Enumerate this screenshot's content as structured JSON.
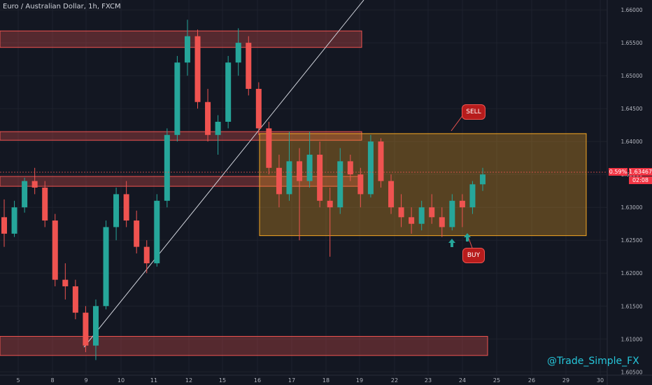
{
  "header": {
    "title": "Euro / Australian Dollar, 1h, FXCM"
  },
  "watermark": "@Trade_Simple_FX",
  "price_tag": {
    "percent": "0.59%",
    "price": "1.63467",
    "countdown": "02:08"
  },
  "annotations": {
    "sell": "SELL",
    "buy": "BUY"
  },
  "colors": {
    "background": "#131722",
    "up": "#26a69a",
    "down": "#ef5350",
    "zone_red": "#ef5350",
    "zone_orange": "#f5a623",
    "text": "#b2b5be"
  },
  "chart_data": {
    "type": "candlestick",
    "ylim": [
      1.6045,
      1.6615
    ],
    "y_ticks": [
      "1.66000",
      "1.65500",
      "1.65000",
      "1.64500",
      "1.64000",
      "1.63500",
      "1.63000",
      "1.62500",
      "1.62000",
      "1.61500",
      "1.61000",
      "1.60500"
    ],
    "x_ticks": [
      "5",
      "8",
      "9",
      "10",
      "11",
      "12",
      "15",
      "16",
      "17",
      "18",
      "19",
      "22",
      "23",
      "24",
      "25",
      "26",
      "29",
      "30"
    ],
    "series": [
      {
        "values": [
          [
            1.6285,
            1.6312,
            1.624,
            1.626
          ],
          [
            1.626,
            1.631,
            1.6255,
            1.63
          ],
          [
            1.63,
            1.6345,
            1.6292,
            1.634
          ],
          [
            1.634,
            1.636,
            1.632,
            1.633
          ],
          [
            1.633,
            1.634,
            1.627,
            1.628
          ],
          [
            1.628,
            1.629,
            1.618,
            1.619
          ],
          [
            1.619,
            1.6215,
            1.616,
            1.618
          ],
          [
            1.618,
            1.619,
            1.613,
            1.614
          ],
          [
            1.614,
            1.615,
            1.608,
            1.609
          ],
          [
            1.609,
            1.616,
            1.6068,
            1.615
          ],
          [
            1.615,
            1.628,
            1.6145,
            1.627
          ],
          [
            1.627,
            1.633,
            1.625,
            1.632
          ],
          [
            1.632,
            1.634,
            1.627,
            1.628
          ],
          [
            1.628,
            1.6295,
            1.623,
            1.624
          ],
          [
            1.624,
            1.625,
            1.62,
            1.6215
          ],
          [
            1.6215,
            1.632,
            1.621,
            1.631
          ],
          [
            1.631,
            1.642,
            1.63,
            1.641
          ],
          [
            1.641,
            1.653,
            1.64,
            1.652
          ],
          [
            1.652,
            1.6585,
            1.65,
            1.656
          ],
          [
            1.656,
            1.657,
            1.645,
            1.646
          ],
          [
            1.646,
            1.648,
            1.64,
            1.641
          ],
          [
            1.641,
            1.644,
            1.638,
            1.643
          ],
          [
            1.643,
            1.653,
            1.642,
            1.652
          ],
          [
            1.652,
            1.6572,
            1.65,
            1.655
          ],
          [
            1.655,
            1.656,
            1.647,
            1.648
          ],
          [
            1.648,
            1.649,
            1.641,
            1.642
          ],
          [
            1.642,
            1.643,
            1.635,
            1.636
          ],
          [
            1.636,
            1.638,
            1.63,
            1.632
          ],
          [
            1.632,
            1.6415,
            1.631,
            1.637
          ],
          [
            1.637,
            1.639,
            1.625,
            1.634
          ],
          [
            1.634,
            1.6415,
            1.633,
            1.638
          ],
          [
            1.638,
            1.64,
            1.63,
            1.631
          ],
          [
            1.631,
            1.633,
            1.6225,
            1.63
          ],
          [
            1.63,
            1.639,
            1.629,
            1.637
          ],
          [
            1.637,
            1.638,
            1.634,
            1.635
          ],
          [
            1.635,
            1.636,
            1.63,
            1.632
          ],
          [
            1.632,
            1.641,
            1.6315,
            1.64
          ],
          [
            1.64,
            1.6405,
            1.633,
            1.634
          ],
          [
            1.634,
            1.635,
            1.629,
            1.63
          ],
          [
            1.63,
            1.632,
            1.627,
            1.6285
          ],
          [
            1.6285,
            1.63,
            1.626,
            1.6275
          ],
          [
            1.6275,
            1.631,
            1.6265,
            1.63
          ],
          [
            1.63,
            1.632,
            1.6275,
            1.6285
          ],
          [
            1.6285,
            1.63,
            1.6255,
            1.627
          ],
          [
            1.627,
            1.632,
            1.6265,
            1.631
          ],
          [
            1.631,
            1.632,
            1.627,
            1.63
          ],
          [
            1.63,
            1.634,
            1.629,
            1.6335
          ],
          [
            1.6335,
            1.636,
            1.6325,
            1.635
          ]
        ]
      }
    ]
  }
}
